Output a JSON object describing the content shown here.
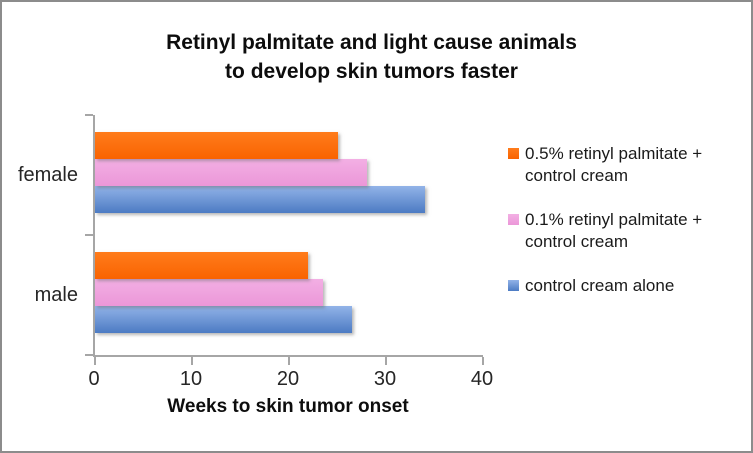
{
  "window": {
    "background": "#FFFFFF",
    "border_color": "#8C8C8C"
  },
  "chart_data": {
    "type": "bar",
    "orientation": "horizontal",
    "title_lines": [
      "Retinyl palmitate and light cause animals",
      "to develop skin tumors faster"
    ],
    "categories": [
      "female",
      "male"
    ],
    "series": [
      {
        "name": "0.5% retinyl palmitate + control cream",
        "color": "#FC6A03",
        "gradient": [
          "#FF7C1C",
          "#F96300"
        ],
        "values": [
          25,
          22
        ]
      },
      {
        "name": "0.1% retinyl palmitate + control cream",
        "color": "#EFA2DF",
        "gradient": [
          "#F3AFE4",
          "#EB97D8"
        ],
        "values": [
          28,
          23.5
        ]
      },
      {
        "name": "control cream alone",
        "color": "#6E97D8",
        "gradient": [
          "#92B3E8",
          "#4C7BC3"
        ],
        "values": [
          34,
          26.5
        ]
      }
    ],
    "xlabel": "Weeks to skin tumor onset",
    "xlim": [
      0,
      40
    ],
    "xticks": [
      0,
      10,
      20,
      30,
      40
    ],
    "grid": false,
    "legend_position": "right",
    "axis_color": "#A6A6A6",
    "text_color": "#262626"
  }
}
